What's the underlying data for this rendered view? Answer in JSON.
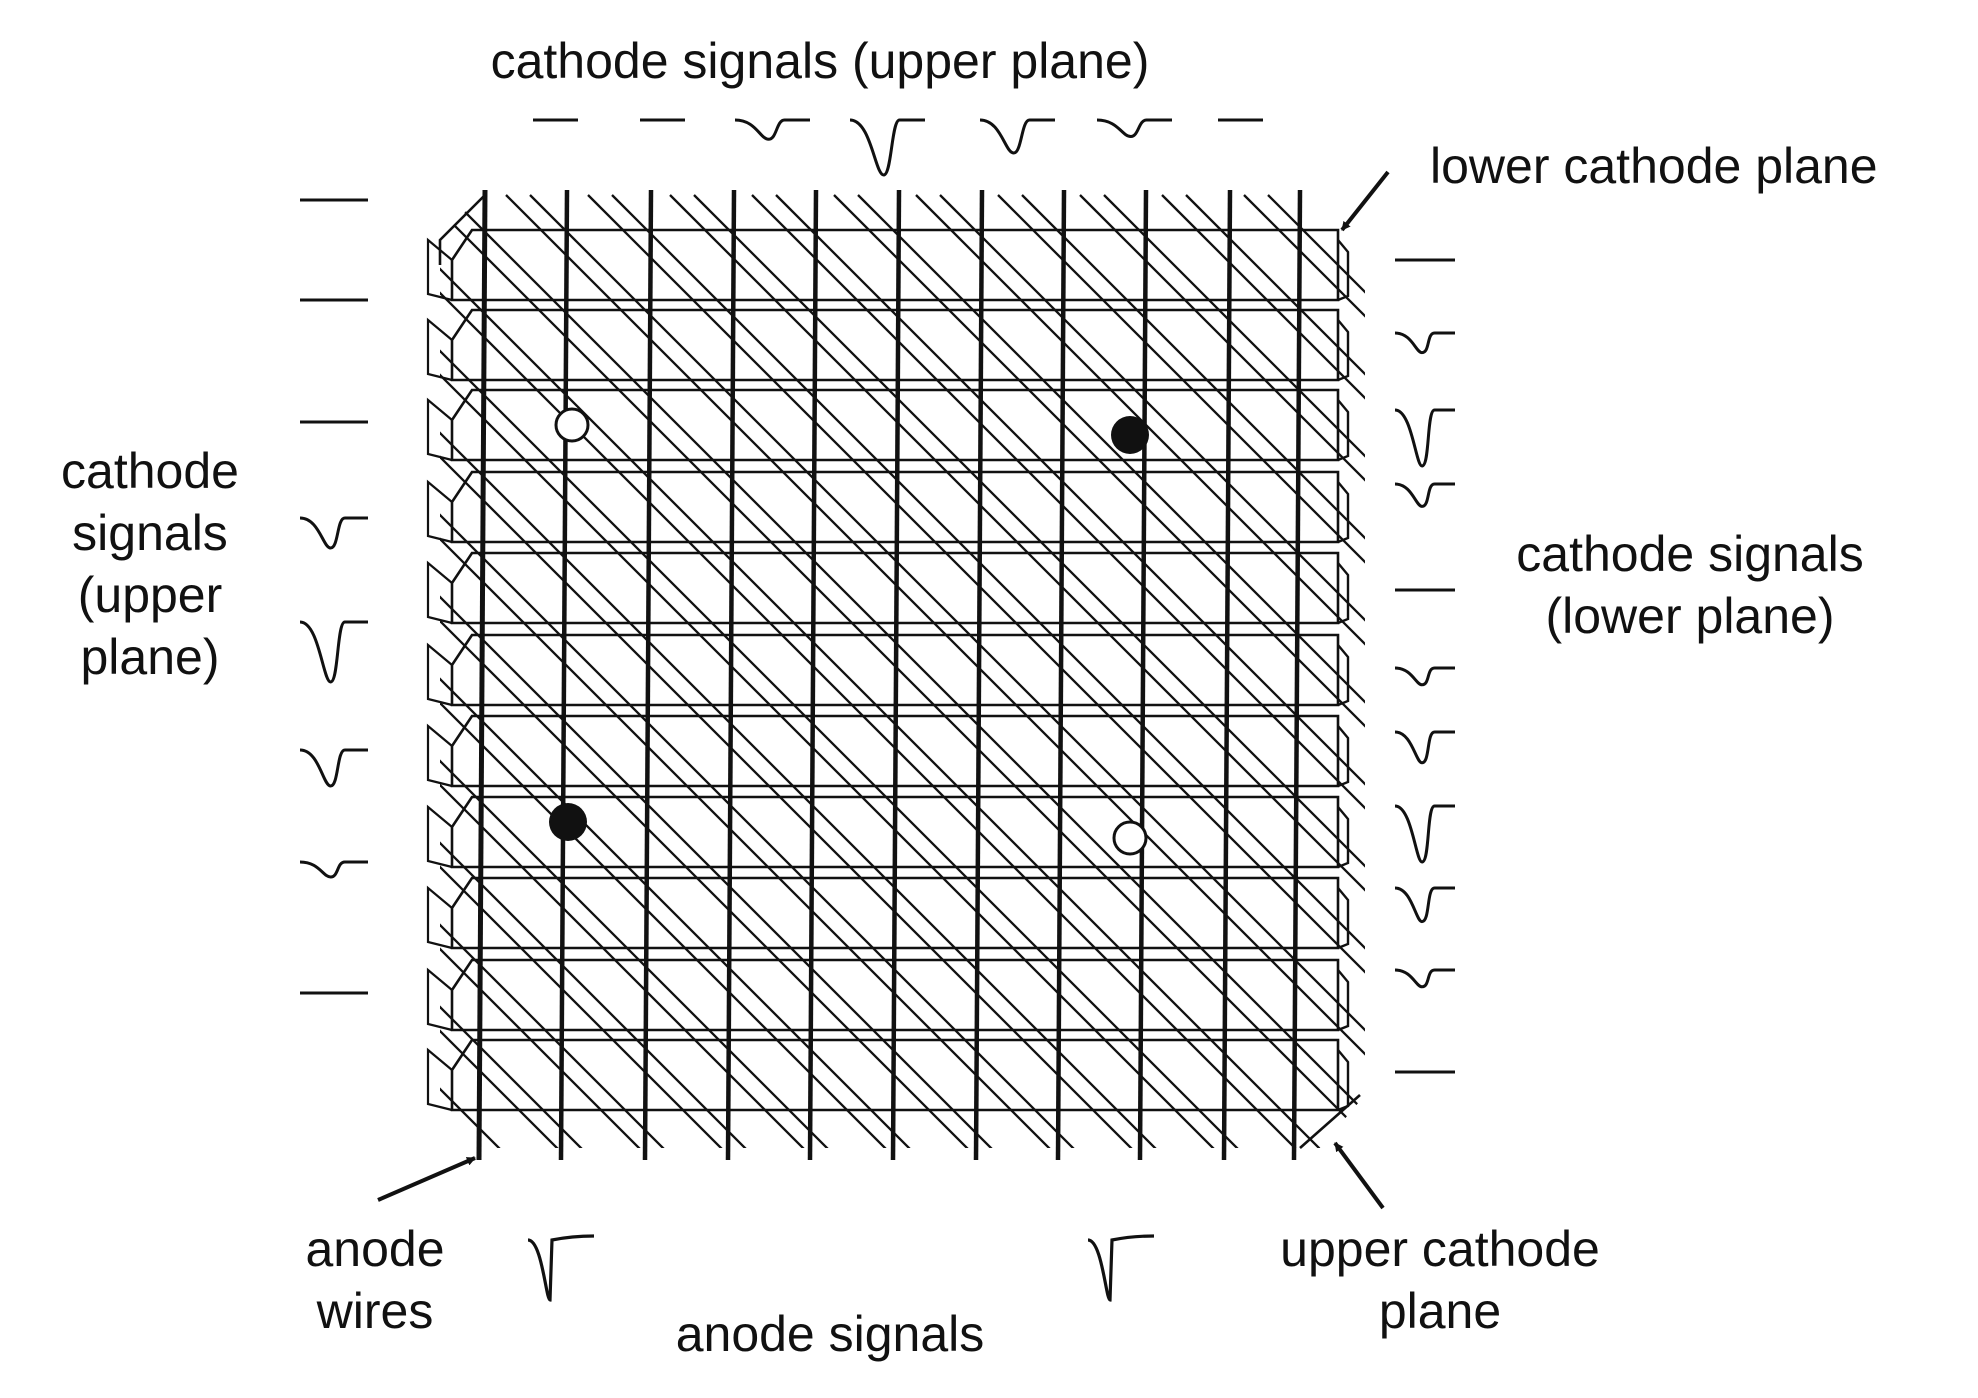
{
  "labels": {
    "top_title": "cathode signals (upper plane)",
    "lower_cathode_plane": "lower cathode plane",
    "left_signals": [
      "cathode",
      "signals",
      "(upper",
      "plane)"
    ],
    "right_signals": [
      "cathode signals",
      "(lower plane)"
    ],
    "anode_wires": [
      "anode",
      "wires"
    ],
    "anode_signals": "anode signals",
    "upper_cathode_plane": [
      "upper cathode",
      "plane"
    ]
  },
  "pulses": {
    "top_amplitudes": [
      0,
      0,
      0.35,
      1.0,
      0.6,
      0.3,
      0
    ],
    "left_amplitudes": [
      0,
      0,
      0,
      0.5,
      1.0,
      0.6,
      0.25,
      0
    ],
    "right_amplitudes": [
      0,
      0.35,
      1.0,
      0.4,
      0,
      0.3,
      0.55,
      1.0,
      0.6,
      0.3,
      0
    ],
    "anode_amplitudes": [
      1.0,
      1.0
    ]
  },
  "hits": [
    {
      "type": "ghost",
      "marker": "open-circle"
    },
    {
      "type": "true",
      "marker": "filled-circle"
    },
    {
      "type": "true",
      "marker": "filled-circle"
    },
    {
      "type": "ghost",
      "marker": "open-circle"
    }
  ],
  "colors": {
    "ink": "#111111",
    "background": "#ffffff"
  }
}
